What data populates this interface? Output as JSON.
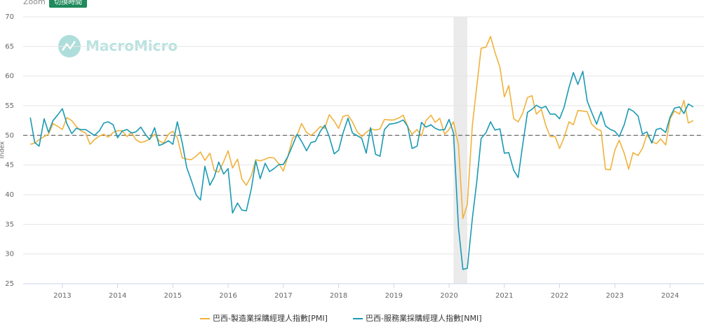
{
  "chart_data": {
    "type": "line",
    "zoom_label": "Zoom",
    "zoom_button": "切換時間",
    "watermark": "MacroMicro",
    "ylabel": "Index",
    "x": [
      2012.42,
      2012.5,
      2012.58,
      2012.67,
      2012.75,
      2012.83,
      2012.92,
      2013,
      2013.08,
      2013.17,
      2013.25,
      2013.33,
      2013.42,
      2013.5,
      2013.58,
      2013.67,
      2013.75,
      2013.83,
      2013.92,
      2014,
      2014.08,
      2014.17,
      2014.25,
      2014.33,
      2014.42,
      2014.5,
      2014.58,
      2014.67,
      2014.75,
      2014.83,
      2014.92,
      2015,
      2015.08,
      2015.17,
      2015.25,
      2015.33,
      2015.42,
      2015.5,
      2015.58,
      2015.67,
      2015.75,
      2015.83,
      2015.92,
      2016,
      2016.08,
      2016.17,
      2016.25,
      2016.33,
      2016.42,
      2016.5,
      2016.58,
      2016.67,
      2016.75,
      2016.83,
      2016.92,
      2017,
      2017.08,
      2017.17,
      2017.25,
      2017.33,
      2017.42,
      2017.5,
      2017.58,
      2017.67,
      2017.75,
      2017.83,
      2017.92,
      2018,
      2018.08,
      2018.17,
      2018.25,
      2018.33,
      2018.42,
      2018.5,
      2018.58,
      2018.67,
      2018.75,
      2018.83,
      2018.92,
      2019,
      2019.08,
      2019.17,
      2019.25,
      2019.33,
      2019.42,
      2019.5,
      2019.58,
      2019.67,
      2019.75,
      2019.83,
      2019.92,
      2020,
      2020.08,
      2020.17,
      2020.25,
      2020.33,
      2020.42,
      2020.5,
      2020.58,
      2020.67,
      2020.75,
      2020.83,
      2020.92,
      2021,
      2021.08,
      2021.17,
      2021.25,
      2021.33,
      2021.42,
      2021.5,
      2021.58,
      2021.67,
      2021.75,
      2021.83,
      2021.92,
      2022,
      2022.08,
      2022.17,
      2022.25,
      2022.33,
      2022.42,
      2022.5,
      2022.58,
      2022.67,
      2022.75,
      2022.83,
      2022.92,
      2023,
      2023.08,
      2023.17,
      2023.25,
      2023.33,
      2023.42,
      2023.5,
      2023.58,
      2023.67,
      2023.75,
      2023.83,
      2023.92,
      2024,
      2024.08,
      2024.17,
      2024.25,
      2024.33,
      2024.42
    ],
    "series": [
      {
        "name": "巴西-製造業採購經理人指數[PMI]",
        "color": "#f0b23c",
        "values": [
          48.5,
          48.7,
          49.3,
          49.8,
          50.2,
          52.0,
          51.5,
          51.0,
          53.0,
          52.5,
          51.5,
          50.8,
          50.4,
          48.5,
          49.3,
          49.9,
          50.2,
          49.7,
          50.5,
          50.8,
          50.8,
          49.8,
          50.5,
          49.3,
          48.8,
          49.0,
          49.4,
          50.2,
          49.1,
          48.7,
          50.2,
          50.7,
          49.6,
          46.2,
          46.0,
          45.9,
          46.5,
          47.2,
          45.8,
          47.0,
          44.1,
          43.8,
          45.6,
          47.4,
          44.5,
          46.0,
          42.6,
          41.6,
          43.2,
          45.9,
          45.7,
          46.0,
          46.3,
          46.2,
          45.2,
          44.0,
          46.4,
          49.6,
          50.1,
          52.0,
          50.5,
          50.0,
          50.6,
          51.5,
          51.2,
          53.5,
          52.4,
          51.2,
          53.2,
          53.4,
          52.3,
          50.7,
          49.8,
          50.5,
          51.1,
          50.9,
          51.1,
          52.7,
          52.6,
          52.6,
          52.9,
          53.4,
          51.5,
          50.2,
          51.0,
          49.9,
          52.5,
          53.4,
          52.2,
          52.9,
          50.2,
          51.0,
          52.3,
          48.4,
          36.0,
          38.3,
          51.6,
          58.2,
          64.7,
          64.9,
          66.7,
          64.0,
          61.5,
          56.5,
          58.4,
          52.8,
          52.3,
          53.7,
          56.4,
          56.7,
          53.6,
          54.4,
          51.7,
          49.8,
          49.8,
          47.8,
          49.6,
          52.3,
          51.8,
          54.2,
          54.1,
          54.0,
          51.9,
          51.1,
          50.8,
          44.3,
          44.2,
          47.5,
          49.2,
          47.0,
          44.3,
          47.1,
          46.6,
          47.8,
          50.1,
          49.0,
          48.6,
          49.4,
          48.4,
          52.8,
          54.1,
          53.6,
          55.9,
          52.1,
          52.5
        ]
      },
      {
        "name": "巴西-服務業採購經理人指數[NMI]",
        "color": "#1a9ab3",
        "values": [
          53.0,
          48.8,
          48.2,
          52.8,
          50.5,
          52.5,
          53.5,
          54.5,
          52.0,
          50.3,
          51.2,
          51.0,
          51.0,
          50.5,
          50.0,
          50.8,
          52.1,
          52.3,
          51.8,
          49.6,
          50.7,
          51.0,
          50.4,
          50.6,
          51.4,
          50.2,
          49.3,
          51.3,
          48.3,
          48.6,
          49.1,
          48.5,
          52.3,
          48.7,
          44.6,
          42.5,
          40.0,
          39.1,
          44.8,
          41.6,
          43.0,
          45.5,
          43.5,
          44.4,
          36.9,
          38.6,
          37.4,
          37.3,
          41.0,
          45.7,
          42.7,
          45.3,
          43.9,
          44.4,
          45.1,
          45.1,
          46.4,
          48.4,
          50.2,
          49.0,
          47.4,
          48.8,
          49.0,
          50.7,
          51.7,
          49.8,
          46.9,
          47.5,
          50.4,
          52.9,
          50.4,
          50.0,
          49.5,
          47.0,
          51.3,
          46.8,
          46.5,
          51.0,
          51.9,
          52.0,
          52.2,
          52.6,
          51.5,
          47.8,
          48.2,
          52.2,
          51.4,
          51.8,
          51.2,
          50.9,
          51.0,
          52.7,
          50.4,
          34.5,
          27.4,
          27.6,
          35.9,
          42.1,
          49.5,
          50.5,
          52.3,
          50.9,
          51.1,
          47.0,
          47.1,
          44.1,
          42.9,
          48.3,
          53.9,
          54.4,
          55.1,
          54.6,
          54.9,
          53.6,
          53.6,
          52.8,
          54.7,
          58.1,
          60.6,
          58.6,
          60.8,
          55.8,
          53.9,
          51.9,
          54.0,
          51.6,
          51.0,
          50.7,
          49.8,
          51.8,
          54.5,
          54.1,
          53.3,
          50.2,
          50.6,
          48.7,
          51.0,
          51.2,
          50.5,
          53.1,
          54.6,
          54.8,
          53.7,
          55.3,
          54.8
        ]
      }
    ],
    "xlim": [
      2012.29,
      2024.61
    ],
    "xticks": [
      2013,
      2014,
      2015,
      2016,
      2017,
      2018,
      2019,
      2020,
      2021,
      2022,
      2023,
      2024
    ],
    "ylim": [
      25,
      70
    ],
    "yticks": [
      25,
      30,
      35,
      40,
      45,
      50,
      55,
      60,
      65,
      70
    ],
    "grid": true,
    "reference_line": 50,
    "shaded_x": [
      2020.08,
      2020.33
    ],
    "legend": "bottom"
  }
}
